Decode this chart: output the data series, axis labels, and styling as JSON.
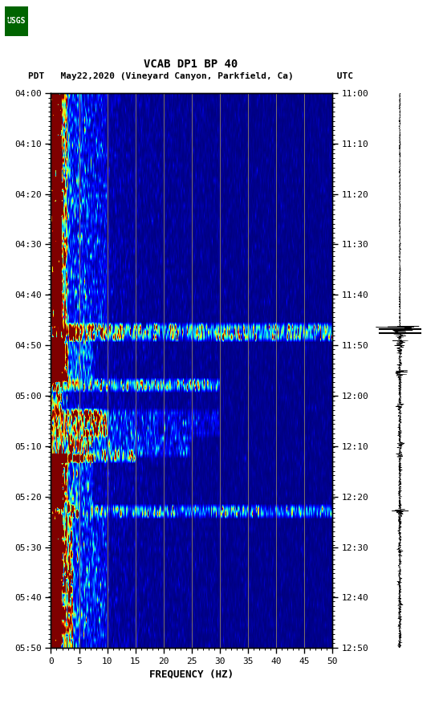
{
  "title_line1": "VCAB DP1 BP 40",
  "title_line2": "PDT   May22,2020 (Vineyard Canyon, Parkfield, Ca)        UTC",
  "xlabel": "FREQUENCY (HZ)",
  "freq_min": 0,
  "freq_max": 50,
  "left_tick_labels": [
    "04:00",
    "04:10",
    "04:20",
    "04:30",
    "04:40",
    "04:50",
    "05:00",
    "05:10",
    "05:20",
    "05:30",
    "05:40",
    "05:50"
  ],
  "right_tick_labels": [
    "11:00",
    "11:10",
    "11:20",
    "11:30",
    "11:40",
    "11:50",
    "12:00",
    "12:10",
    "12:20",
    "12:30",
    "12:40",
    "12:50"
  ],
  "xtick_labels": [
    "0",
    "5",
    "10",
    "15",
    "20",
    "25",
    "30",
    "35",
    "40",
    "45",
    "50"
  ],
  "background_color": "#ffffff",
  "n_time_bins": 110,
  "n_freq_bins": 400
}
